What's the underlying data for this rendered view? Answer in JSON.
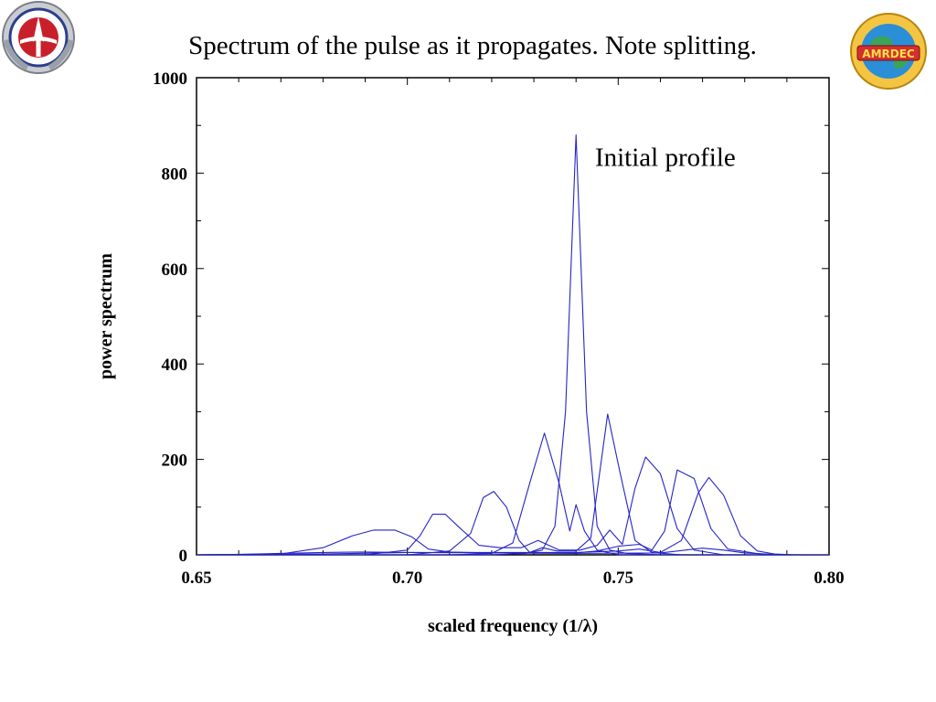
{
  "slide": {
    "title": "Spectrum of the pulse as it propagates.  Note splitting."
  },
  "logos": {
    "left": {
      "icon": "army-aviation-seal-icon",
      "text": "TRADITION OF EXCELLENCE"
    },
    "right": {
      "icon": "amrdec-globe-logo-icon",
      "text": "AMRDEC",
      "ring_text": "Aviation & Missile RD&E Center",
      "tagline": "Strength Through Technology"
    }
  },
  "colors": {
    "line": "#2424c8",
    "axis": "#000000"
  },
  "chart_data": {
    "type": "line",
    "title": "",
    "xlabel": "scaled frequency (1/λ)",
    "ylabel": "power spectrum",
    "xlim": [
      0.65,
      0.8
    ],
    "ylim": [
      0,
      1000
    ],
    "x_ticks": [
      0.65,
      0.7,
      0.75,
      0.8
    ],
    "x_tick_labels": [
      "0.65",
      "0.70",
      "0.75",
      "0.80"
    ],
    "y_ticks": [
      0,
      200,
      400,
      600,
      800,
      1000
    ],
    "y_tick_labels": [
      "0",
      "200",
      "400",
      "600",
      "800",
      "1000"
    ],
    "grid": false,
    "annotations": [
      {
        "text": "Initial profile",
        "x": 0.7445,
        "y": 815
      }
    ],
    "series": [
      {
        "x": [
          0.65,
          0.72,
          0.728,
          0.732,
          0.735,
          0.7375,
          0.74,
          0.7425,
          0.745,
          0.748,
          0.752,
          0.76,
          0.8
        ],
        "y": [
          0,
          0,
          3,
          10,
          60,
          300,
          880,
          300,
          60,
          10,
          3,
          0,
          0
        ]
      },
      {
        "x": [
          0.65,
          0.71,
          0.72,
          0.725,
          0.729,
          0.7325,
          0.736,
          0.7385,
          0.74,
          0.742,
          0.745,
          0.75,
          0.8
        ],
        "y": [
          0,
          0,
          3,
          25,
          150,
          255,
          150,
          50,
          105,
          50,
          10,
          0,
          0
        ]
      },
      {
        "x": [
          0.65,
          0.7,
          0.71,
          0.715,
          0.718,
          0.7205,
          0.7235,
          0.7265,
          0.729,
          0.732,
          0.7355,
          0.74,
          0.7435,
          0.7475,
          0.7505,
          0.754,
          0.758,
          0.765,
          0.8
        ],
        "y": [
          0,
          0,
          8,
          45,
          120,
          133,
          100,
          30,
          5,
          15,
          8,
          8,
          35,
          295,
          170,
          30,
          5,
          0,
          0
        ]
      },
      {
        "x": [
          0.65,
          0.69,
          0.7,
          0.703,
          0.706,
          0.709,
          0.712,
          0.717,
          0.722,
          0.727,
          0.731,
          0.736,
          0.741,
          0.745,
          0.748,
          0.751,
          0.754,
          0.7565,
          0.76,
          0.764,
          0.768,
          0.775,
          0.8
        ],
        "y": [
          0,
          0,
          10,
          40,
          85,
          85,
          60,
          20,
          15,
          15,
          30,
          10,
          10,
          20,
          52,
          22,
          140,
          205,
          170,
          55,
          10,
          0,
          0
        ]
      },
      {
        "x": [
          0.65,
          0.67,
          0.68,
          0.687,
          0.692,
          0.697,
          0.701,
          0.705,
          0.71,
          0.72,
          0.73,
          0.74,
          0.745,
          0.75,
          0.755,
          0.758,
          0.761,
          0.764,
          0.768,
          0.772,
          0.776,
          0.785,
          0.8
        ],
        "y": [
          0,
          2,
          15,
          40,
          52,
          52,
          38,
          12,
          6,
          4,
          4,
          4,
          8,
          18,
          22,
          10,
          50,
          178,
          160,
          55,
          12,
          0,
          0
        ]
      },
      {
        "x": [
          0.65,
          0.68,
          0.7,
          0.72,
          0.74,
          0.75,
          0.755,
          0.76,
          0.765,
          0.769,
          0.7715,
          0.775,
          0.779,
          0.783,
          0.787,
          0.792,
          0.8
        ],
        "y": [
          0,
          2,
          5,
          5,
          5,
          8,
          12,
          5,
          30,
          130,
          162,
          125,
          40,
          8,
          2,
          0,
          0
        ]
      },
      {
        "x": [
          0.65,
          0.66,
          0.67,
          0.68,
          0.69,
          0.7,
          0.72,
          0.74,
          0.76,
          0.77,
          0.775,
          0.78,
          0.785,
          0.79,
          0.8
        ],
        "y": [
          0,
          1,
          3,
          5,
          6,
          5,
          4,
          3,
          4,
          14,
          10,
          4,
          2,
          0,
          0
        ]
      }
    ]
  }
}
